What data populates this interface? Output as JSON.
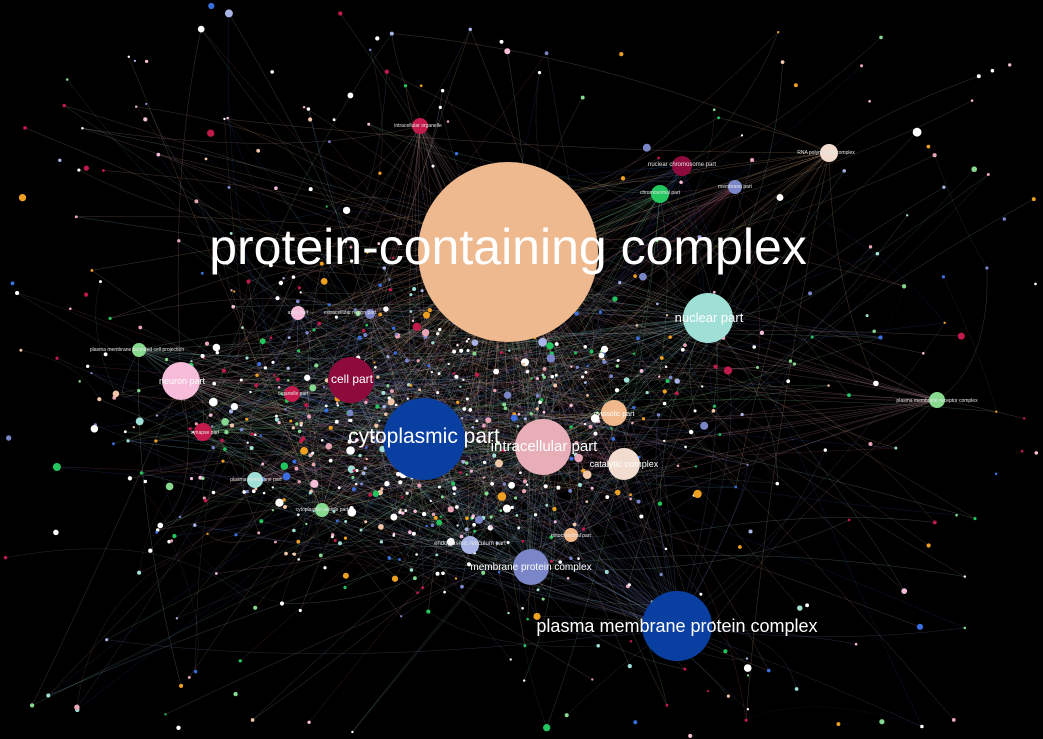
{
  "title": "",
  "background": "#000000",
  "hubs": [
    {
      "id": "protein-containing-complex",
      "label": "protein-containing complex",
      "color": "#efb98f",
      "size": 9
    },
    {
      "id": "nuclear-part",
      "label": "nuclear part",
      "color": "#9fdfd6",
      "size": 4
    },
    {
      "id": "cell-part",
      "label": "cell part",
      "color": "#8c0a3c",
      "size": 3
    },
    {
      "id": "neuron-part",
      "label": "neuron part",
      "color": "#f6bcd9",
      "size": 3
    },
    {
      "id": "cytoplasmic-part",
      "label": "cytoplasmic part",
      "color": "#0a3fa2",
      "size": 6
    },
    {
      "id": "intracellular-part",
      "label": "intracellular part",
      "color": "#e8aeb8",
      "size": 5
    },
    {
      "id": "catalytic-complex",
      "label": "catalytic complex",
      "color": "#f1dccf",
      "size": 2
    },
    {
      "id": "cytosolic-part",
      "label": "cytosolic part",
      "color": "#f1b98b",
      "size": 2
    },
    {
      "id": "membrane-protein-complex",
      "label": "membrane protein complex",
      "color": "#7b86c9",
      "size": 3
    },
    {
      "id": "plasma-membrane-protein-complex",
      "label": "plasma membrane protein complex",
      "color": "#0a3fa2",
      "size": 6
    }
  ],
  "minor_labels": [
    {
      "id": "intracellular-organelle",
      "label": "intracellular organelle",
      "color": "#c21a4a"
    },
    {
      "id": "nuclear-chromosome-part",
      "label": "nuclear chromosome part",
      "color": "#8c0a3c"
    },
    {
      "id": "chromosomal-part",
      "label": "chromosomal part",
      "color": "#22c55e"
    },
    {
      "id": "membrane-part",
      "label": "membrane part",
      "color": "#7b86c9"
    },
    {
      "id": "rna-polymerase-complex",
      "label": "RNA polymerase complex",
      "color": "#f1dccf"
    },
    {
      "id": "plasma-membrane-bounded-cell-projection",
      "label": "plasma membrane bounded cell projection",
      "color": "#86d98f"
    },
    {
      "id": "axon-part",
      "label": "axon part",
      "color": "#f6bcd9"
    },
    {
      "id": "extracellular-region-part",
      "label": "extracellular region part",
      "color": "#7b86c9"
    },
    {
      "id": "organelle-part",
      "label": "organelle part",
      "color": "#c21a4a"
    },
    {
      "id": "synapse-part",
      "label": "synapse part",
      "color": "#c21a4a"
    },
    {
      "id": "plasma-membrane-part",
      "label": "plasma membrane part",
      "color": "#9fdfd6"
    },
    {
      "id": "cytoplasmic-vesicle-part",
      "label": "cytoplasmic vesicle part",
      "color": "#86d98f"
    },
    {
      "id": "endoplasmic-reticulum-part",
      "label": "endoplasmic reticulum part",
      "color": "#a9b4e6"
    },
    {
      "id": "mitochondrial-part",
      "label": "mitochondrial part",
      "color": "#f1b98b"
    },
    {
      "id": "plasma-membrane-receptor-complex",
      "label": "plasma membrane receptor complex",
      "color": "#86d98f"
    }
  ],
  "palette": [
    "#ffffff",
    "#ffffff",
    "#ffffff",
    "#ffffff",
    "#f2c6a8",
    "#e9a5b5",
    "#9fdfd6",
    "#7b86c9",
    "#3b6fe0",
    "#22c55e",
    "#f0a020",
    "#c21a4a",
    "#f6bcd9",
    "#86d98f",
    "#a9b4e6"
  ],
  "edge_colors": [
    "#efb98f",
    "#9fdfd6",
    "#7b86c9",
    "#e9a5b5",
    "#2a4fa8",
    "#86d98f",
    "#c06080"
  ]
}
